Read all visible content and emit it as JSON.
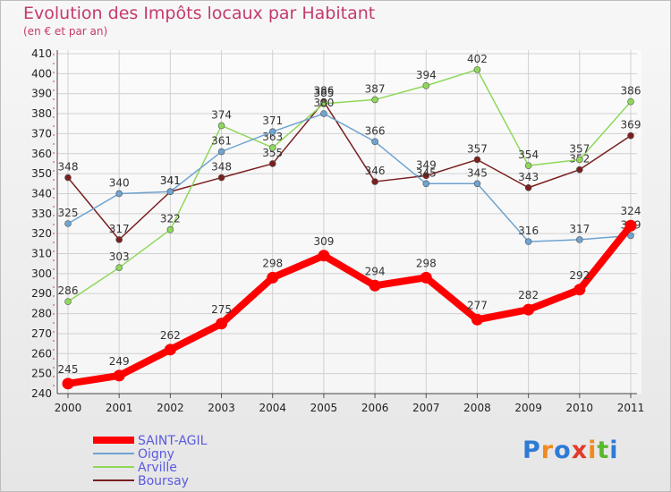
{
  "header": {
    "title": "Evolution des Impôts locaux par Habitant",
    "subtitle": "(en € et par an)"
  },
  "brand": {
    "text": "Proxiti"
  },
  "chart_data": {
    "type": "line",
    "title": "Evolution des Impôts locaux par Habitant",
    "subtitle": "(en € et par an)",
    "xlabel": "",
    "ylabel": "",
    "ylim": [
      240,
      410
    ],
    "yticks": [
      240,
      250,
      260,
      270,
      280,
      290,
      300,
      310,
      320,
      330,
      340,
      350,
      360,
      370,
      380,
      390,
      400,
      410
    ],
    "grid": true,
    "legend_position": "bottom-left",
    "x": [
      "2000",
      "2001",
      "2002",
      "2003",
      "2004",
      "2005",
      "2006",
      "2007",
      "2008",
      "2009",
      "2010",
      "2011"
    ],
    "series": [
      {
        "name": "SAINT-AGIL",
        "color": "#ff0000",
        "values": [
          245,
          249,
          262,
          275,
          298,
          309,
          294,
          298,
          277,
          282,
          292,
          324
        ]
      },
      {
        "name": "Oigny",
        "color": "#6fa3d0",
        "values": [
          325,
          340,
          341,
          361,
          371,
          380,
          366,
          345,
          345,
          316,
          317,
          319
        ]
      },
      {
        "name": "Arville",
        "color": "#8ed85a",
        "values": [
          286,
          303,
          322,
          374,
          363,
          385,
          387,
          394,
          402,
          354,
          357,
          386
        ]
      },
      {
        "name": "Boursay",
        "color": "#7a1f1f",
        "values": [
          348,
          317,
          341,
          348,
          355,
          386,
          346,
          349,
          357,
          343,
          352,
          369
        ]
      }
    ]
  }
}
